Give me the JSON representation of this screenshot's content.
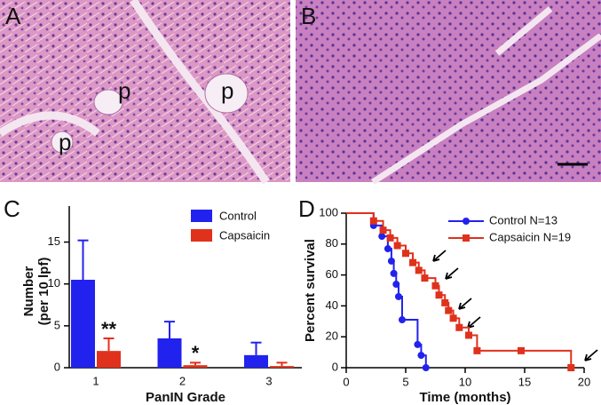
{
  "panels": {
    "A": {
      "label": "A",
      "annotations": [
        "p",
        "p",
        "p"
      ]
    },
    "B": {
      "label": "B"
    }
  },
  "chart_data": [
    {
      "type": "bar",
      "panel_label": "C",
      "xlabel": "PanIN Grade",
      "ylabel": [
        "Number",
        "(per 10 lpf)"
      ],
      "categories": [
        "1",
        "2",
        "3"
      ],
      "series": [
        {
          "name": "Control",
          "color": "#2222ee",
          "values": [
            10.5,
            3.5,
            1.5
          ],
          "errors": [
            4.7,
            2.0,
            1.5
          ]
        },
        {
          "name": "Capsaicin",
          "color": "#e0311c",
          "values": [
            2.0,
            0.3,
            0.2
          ],
          "errors": [
            1.5,
            0.3,
            0.4
          ]
        }
      ],
      "annotations": [
        "**",
        "*"
      ],
      "ylim": [
        0,
        19.3
      ],
      "yticks": [
        0,
        5,
        10,
        15
      ],
      "legend": "upper right"
    },
    {
      "type": "line",
      "panel_label": "D",
      "xlabel": "Time (months)",
      "ylabel": "Percent survival",
      "series": [
        {
          "name": "Control N=13",
          "color": "#2222ee",
          "marker": "circle",
          "x": [
            0,
            2.3,
            3.0,
            3.5,
            3.8,
            4.0,
            4.2,
            4.4,
            4.7,
            6.0,
            6.3,
            6.7
          ],
          "values": [
            100,
            92,
            85,
            77,
            69,
            61,
            54,
            46,
            31,
            15,
            8,
            0
          ]
        },
        {
          "name": "Capsaicin N=19",
          "color": "#e0311c",
          "marker": "square",
          "x": [
            0,
            2.3,
            3.1,
            3.7,
            4.3,
            5.0,
            5.6,
            6.1,
            6.6,
            7.5,
            7.8,
            8.3,
            8.6,
            9.0,
            9.5,
            10.3,
            11.0,
            14.7,
            18.9
          ],
          "values": [
            100,
            95,
            89,
            84,
            79,
            74,
            68,
            63,
            58,
            53,
            47,
            42,
            37,
            32,
            26,
            21,
            11,
            11,
            0
          ]
        }
      ],
      "xlim": [
        0,
        20
      ],
      "xticks": [
        0,
        5,
        10,
        15,
        20
      ],
      "ylim": [
        0,
        100
      ],
      "yticks": [
        0,
        20,
        40,
        60,
        80,
        100
      ],
      "legend": "upper right"
    }
  ]
}
